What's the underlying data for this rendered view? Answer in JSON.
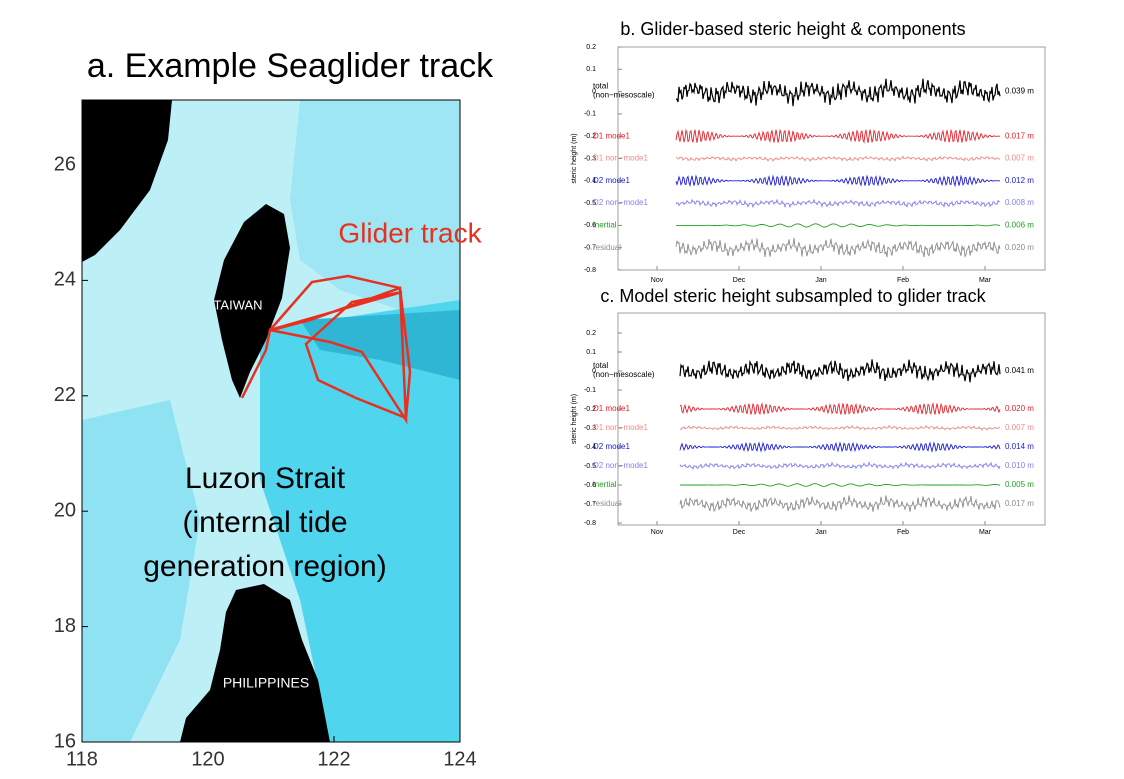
{
  "map": {
    "title": "a. Example Seaglider track",
    "track_label": "Glider track",
    "labels": [
      "TAIWAN",
      "PHILIPPINES"
    ],
    "region": [
      "Luzon Strait",
      "(internal tide",
      "generation region)"
    ],
    "xticks": [
      118,
      120,
      122,
      124
    ],
    "yticks": [
      16,
      18,
      20,
      22,
      24,
      26
    ]
  },
  "panels": [
    {
      "title": "b. Glider-based steric height & components",
      "ylabel": "steric height  (m)",
      "yticks": [
        0.2,
        0.1,
        0,
        -0.1,
        -0.2,
        -0.3,
        -0.4,
        -0.5,
        -0.6,
        -0.7,
        -0.8
      ],
      "months": [
        "Nov",
        "Dec",
        "Jan",
        "Feb",
        "Mar"
      ],
      "total_sub": "(non−mesoscale)",
      "rows": [
        {
          "name": "total",
          "amp": "0.039 m",
          "color": "#000000"
        },
        {
          "name": "D1 mode1",
          "amp": "0.017 m",
          "color": "#e8202a"
        },
        {
          "name": "D1 non−mode1",
          "amp": "0.007 m",
          "color": "#f08a8a"
        },
        {
          "name": "D2 mode1",
          "amp": "0.012 m",
          "color": "#1a1ad8"
        },
        {
          "name": "D2 non−mode1",
          "amp": "0.008 m",
          "color": "#8080ee"
        },
        {
          "name": "inertial",
          "amp": "0.006 m",
          "color": "#22a022"
        },
        {
          "name": "residual",
          "amp": "0.020 m",
          "color": "#8c8c8c"
        }
      ]
    },
    {
      "title": "c. Model steric height subsampled to glider track",
      "ylabel": "steric height  (m)",
      "yticks": [
        0.2,
        0.1,
        0,
        -0.1,
        -0.2,
        -0.3,
        -0.4,
        -0.5,
        -0.6,
        -0.7,
        -0.8
      ],
      "months": [
        "Nov",
        "Dec",
        "Jan",
        "Feb",
        "Mar"
      ],
      "total_sub": "(non−mesoscale)",
      "rows": [
        {
          "name": "total",
          "amp": "0.041 m",
          "color": "#000000"
        },
        {
          "name": "D1 mode1",
          "amp": "0.020 m",
          "color": "#e8202a"
        },
        {
          "name": "D1 non−mode1",
          "amp": "0.007 m",
          "color": "#f08a8a"
        },
        {
          "name": "D2 mode1",
          "amp": "0.014 m",
          "color": "#1a1ad8"
        },
        {
          "name": "D2 non−mode1",
          "amp": "0.010 m",
          "color": "#8080ee"
        },
        {
          "name": "inertial",
          "amp": "0.005 m",
          "color": "#22a022"
        },
        {
          "name": "residual",
          "amp": "0.017 m",
          "color": "#8c8c8c"
        }
      ]
    }
  ]
}
